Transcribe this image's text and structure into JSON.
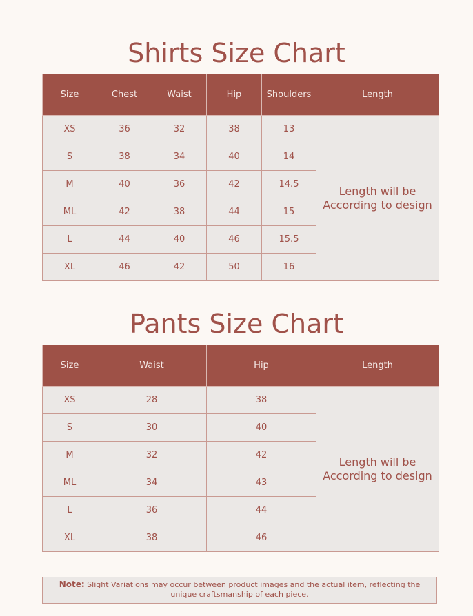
{
  "shirts": {
    "title": "Shirts Size Chart",
    "headers": [
      "Size",
      "Chest",
      "Waist",
      "Hip",
      "Shoulders",
      "Length"
    ],
    "rows": [
      [
        "XS",
        "36",
        "32",
        "38",
        "13"
      ],
      [
        "S",
        "38",
        "34",
        "40",
        "14"
      ],
      [
        "M",
        "40",
        "36",
        "42",
        "14.5"
      ],
      [
        "ML",
        "42",
        "38",
        "44",
        "15"
      ],
      [
        "L",
        "44",
        "40",
        "46",
        "15.5"
      ],
      [
        "XL",
        "46",
        "42",
        "50",
        "16"
      ]
    ],
    "length_note": [
      "Length will be",
      "According to design"
    ]
  },
  "pants": {
    "title": "Pants Size Chart",
    "headers": [
      "Size",
      "Waist",
      "Hip",
      "Length"
    ],
    "rows": [
      [
        "XS",
        "28",
        "38"
      ],
      [
        "S",
        "30",
        "40"
      ],
      [
        "M",
        "32",
        "42"
      ],
      [
        "ML",
        "34",
        "43"
      ],
      [
        "L",
        "36",
        "44"
      ],
      [
        "XL",
        "38",
        "46"
      ]
    ],
    "length_note": [
      "Length will be",
      "According to design"
    ]
  },
  "note": {
    "label": "Note:",
    "text": "Slight Variations may occur between product images and the actual item, reflecting the unique craftsmanship of each piece."
  },
  "colors": {
    "header_bg": "#9e5147",
    "body_bg": "#ebe8e6",
    "text": "#a0524a",
    "page_bg": "#fcf8f4"
  }
}
